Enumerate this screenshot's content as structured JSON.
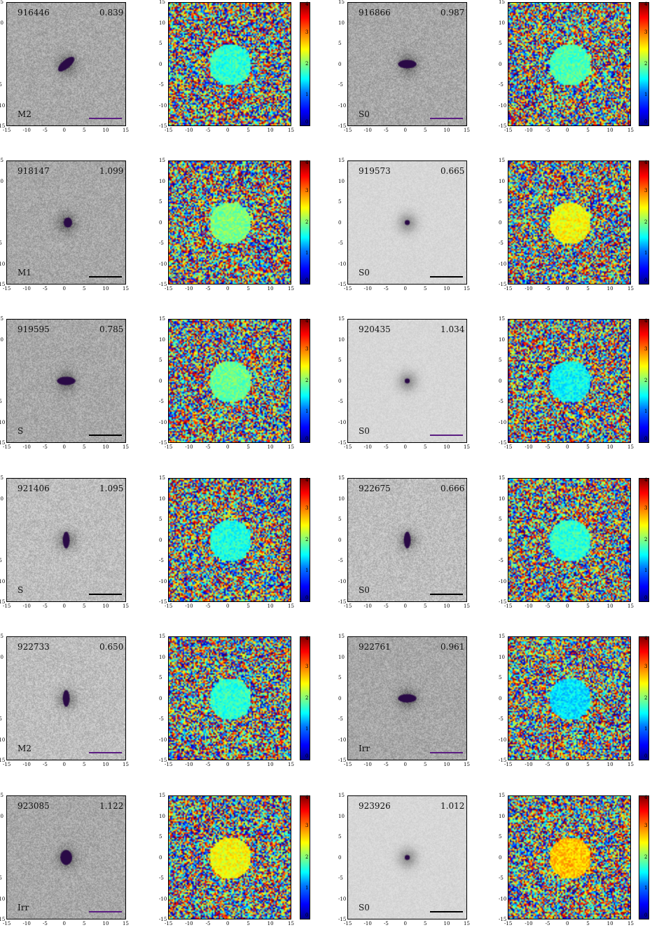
{
  "axis_ticks": [
    "-15",
    "-10",
    "-5",
    "0",
    "5",
    "10",
    "15"
  ],
  "colorbar_ticks": [
    "0",
    "1",
    "2",
    "3",
    "4"
  ],
  "colors": {
    "scalebar_purple": "#5b1e82",
    "scalebar_black": "#000000",
    "core_purple": "#2a0a46"
  },
  "rows": [
    {
      "left": {
        "id": "916446",
        "value": "0.839",
        "type": "M2",
        "scalebar": "purple",
        "bg": "dark",
        "core": "diag"
      },
      "right": {
        "id": "916866",
        "value": "0.987",
        "type": "S0",
        "scalebar": "purple",
        "bg": "dark",
        "core": "horiz"
      }
    },
    {
      "left": {
        "id": "918147",
        "value": "1.099",
        "type": "M1",
        "scalebar": "black",
        "bg": "dark",
        "core": "small"
      },
      "right": {
        "id": "919573",
        "value": "0.665",
        "type": "S0",
        "scalebar": "black",
        "bg": "light",
        "core": "dot"
      }
    },
    {
      "left": {
        "id": "919595",
        "value": "0.785",
        "type": "S",
        "scalebar": "black",
        "bg": "dark",
        "core": "horiz"
      },
      "right": {
        "id": "920435",
        "value": "1.034",
        "type": "S0",
        "scalebar": "purple",
        "bg": "light",
        "core": "dot"
      }
    },
    {
      "left": {
        "id": "921406",
        "value": "1.095",
        "type": "S",
        "scalebar": "black",
        "bg": "mid",
        "core": "vert"
      },
      "right": {
        "id": "922675",
        "value": "0.666",
        "type": "S0",
        "scalebar": "black",
        "bg": "mid",
        "core": "vert"
      }
    },
    {
      "left": {
        "id": "922733",
        "value": "0.650",
        "type": "M2",
        "scalebar": "purple",
        "bg": "mid",
        "core": "vert"
      },
      "right": {
        "id": "922761",
        "value": "0.961",
        "type": "Irr",
        "scalebar": "purple",
        "bg": "dark",
        "core": "horiz"
      }
    },
    {
      "left": {
        "id": "923085",
        "value": "1.122",
        "type": "Irr",
        "scalebar": "purple",
        "bg": "dark",
        "core": "blob"
      },
      "right": {
        "id": "923926",
        "value": "1.012",
        "type": "S0",
        "scalebar": "black",
        "bg": "light",
        "core": "dot"
      }
    }
  ]
}
